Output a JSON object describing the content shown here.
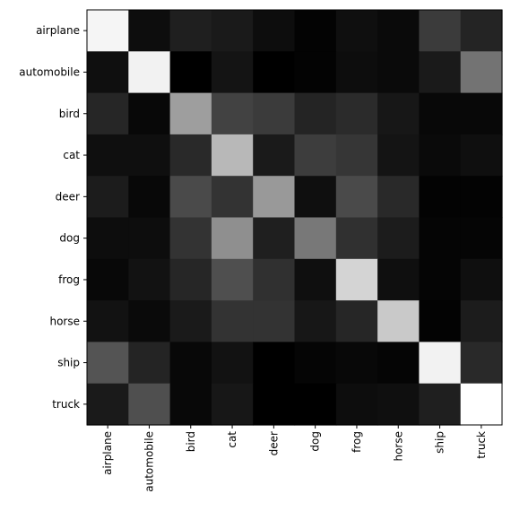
{
  "chart_data": {
    "type": "heatmap",
    "title": "",
    "xlabel": "",
    "ylabel": "",
    "colormap": "gray",
    "color_range": [
      0.0,
      1.0
    ],
    "grid": false,
    "legend": "none",
    "x_categories": [
      "airplane",
      "automobile",
      "bird",
      "cat",
      "deer",
      "dog",
      "frog",
      "horse",
      "ship",
      "truck"
    ],
    "y_categories": [
      "airplane",
      "automobile",
      "bird",
      "cat",
      "deer",
      "dog",
      "frog",
      "horse",
      "ship",
      "truck"
    ],
    "values": [
      [
        0.96,
        0.05,
        0.12,
        0.1,
        0.05,
        0.01,
        0.06,
        0.04,
        0.23,
        0.14
      ],
      [
        0.06,
        0.95,
        0.0,
        0.08,
        0.0,
        0.01,
        0.05,
        0.04,
        0.1,
        0.45
      ],
      [
        0.15,
        0.03,
        0.62,
        0.26,
        0.23,
        0.14,
        0.17,
        0.09,
        0.03,
        0.03
      ],
      [
        0.06,
        0.06,
        0.16,
        0.72,
        0.1,
        0.24,
        0.21,
        0.08,
        0.04,
        0.06
      ],
      [
        0.11,
        0.03,
        0.29,
        0.2,
        0.6,
        0.06,
        0.29,
        0.16,
        0.01,
        0.01
      ],
      [
        0.05,
        0.05,
        0.2,
        0.56,
        0.12,
        0.47,
        0.19,
        0.11,
        0.02,
        0.02
      ],
      [
        0.03,
        0.07,
        0.15,
        0.31,
        0.19,
        0.06,
        0.83,
        0.06,
        0.02,
        0.06
      ],
      [
        0.07,
        0.04,
        0.1,
        0.2,
        0.2,
        0.09,
        0.15,
        0.79,
        0.01,
        0.11
      ],
      [
        0.33,
        0.14,
        0.03,
        0.07,
        0.0,
        0.02,
        0.03,
        0.02,
        0.95,
        0.16
      ],
      [
        0.1,
        0.31,
        0.03,
        0.09,
        0.0,
        0.0,
        0.05,
        0.06,
        0.12,
        1.0
      ]
    ]
  }
}
